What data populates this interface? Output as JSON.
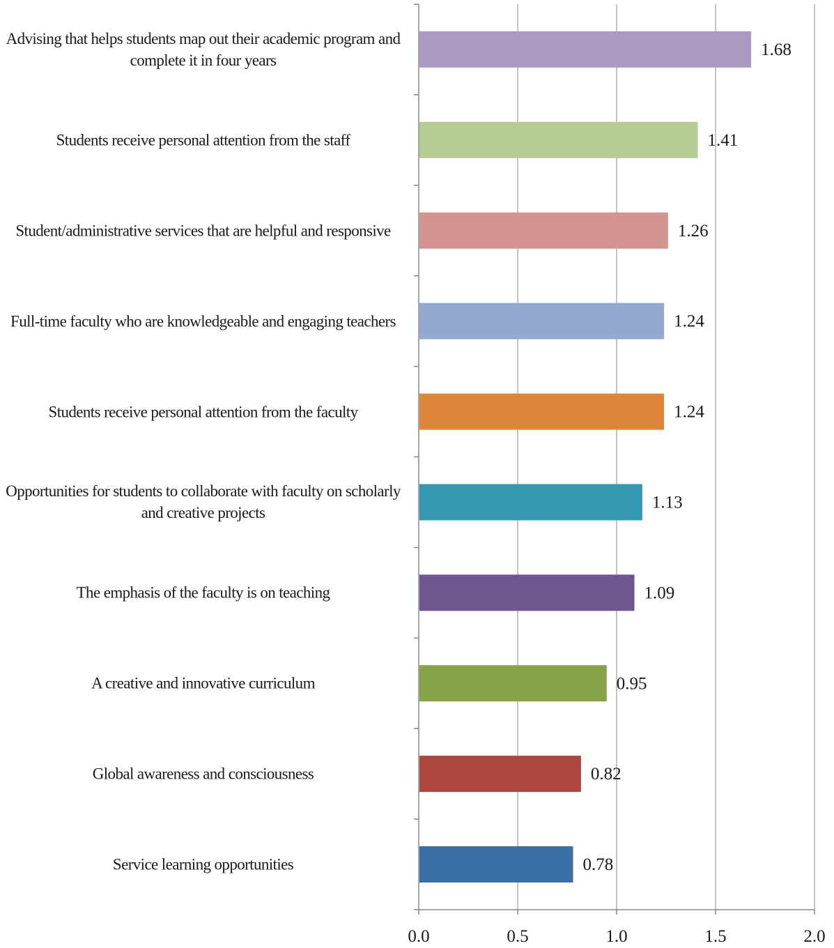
{
  "chart_data": {
    "type": "bar",
    "orientation": "horizontal",
    "categories": [
      "Advising that helps students map out their academic program and complete it in four years",
      "Students receive personal attention from the staff",
      "Student/administrative services that are helpful and responsive",
      "Full-time faculty who are knowledgeable and engaging teachers",
      "Students receive personal attention from the faculty",
      "Opportunities for students to collaborate with faculty on scholarly and creative projects",
      "The emphasis of the faculty is on teaching",
      "A creative and innovative curriculum",
      "Global awareness and consciousness",
      "Service learning opportunities"
    ],
    "values": [
      1.68,
      1.41,
      1.26,
      1.24,
      1.24,
      1.13,
      1.09,
      0.95,
      0.82,
      0.78
    ],
    "data_labels": [
      "1.68",
      "1.41",
      "1.26",
      "1.24",
      "1.24",
      "1.13",
      "1.09",
      "0.95",
      "0.82",
      "0.78"
    ],
    "colors": [
      "#a89bbf",
      "#b7cc94",
      "#d49592",
      "#93a9cf",
      "#dd8538",
      "#3499b1",
      "#6e578f",
      "#86a447",
      "#ad463f",
      "#3c6ea6"
    ],
    "xlim": [
      0,
      2
    ],
    "xticks": [
      "0.0",
      "0.5",
      "1.0",
      "1.5",
      "2.0"
    ],
    "xtick_values": [
      0,
      0.5,
      1.0,
      1.5,
      2.0
    ],
    "grid": "vertical",
    "gridline_color": "#878787",
    "axis_color": "#878787",
    "title": "",
    "xlabel": "",
    "ylabel": "",
    "legend": "none"
  }
}
